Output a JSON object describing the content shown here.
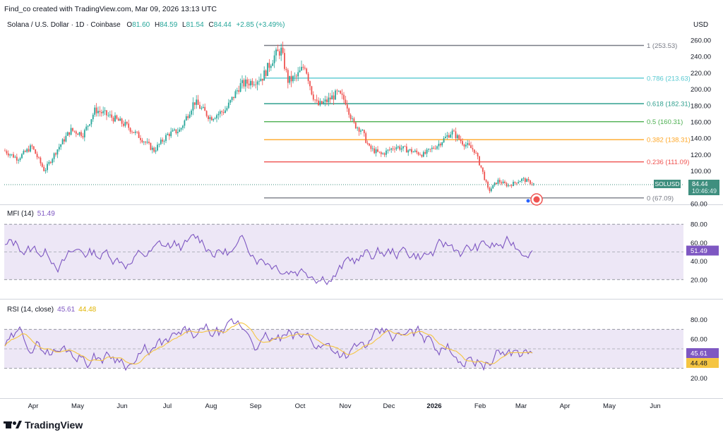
{
  "header": {
    "created_by": "Find_co created with TradingView.com, Mar 09, 2026 13:13 UTC",
    "symbol": "Solana / U.S. Dollar · 1D · Coinbase",
    "open_label": "O",
    "open": "81.60",
    "high_label": "H",
    "high": "84.59",
    "low_label": "L",
    "low": "81.54",
    "close_label": "C",
    "close": "84.44",
    "change": "+2.85 (+3.49%)"
  },
  "currency": "USD",
  "price_axis": [
    "260.00",
    "240.00",
    "220.00",
    "200.00",
    "180.00",
    "160.00",
    "140.00",
    "120.00",
    "100.00",
    "80.00",
    "60.00"
  ],
  "price_tag": {
    "symbol": "SOLUSD",
    "price": "84.44",
    "countdown": "10:46:49"
  },
  "fib_levels": [
    {
      "label": "1 (253.53)",
      "value": 253.53,
      "color": "#787b86"
    },
    {
      "label": "0.786 (213.63)",
      "value": 213.63,
      "color": "#56c8d0"
    },
    {
      "label": "0.618 (182.31)",
      "value": 182.31,
      "color": "#2f9f8e"
    },
    {
      "label": "0.5 (160.31)",
      "value": 160.31,
      "color": "#4caf50"
    },
    {
      "label": "0.382 (138.31)",
      "value": 138.31,
      "color": "#ffa726"
    },
    {
      "label": "0.236 (111.09)",
      "value": 111.09,
      "color": "#ef5350"
    },
    {
      "label": "0 (67.09)",
      "value": 67.09,
      "color": "#787b86"
    }
  ],
  "mfi": {
    "title": "MFI (14)",
    "value": "51.49",
    "axis": [
      "80.00",
      "60.00",
      "40.00",
      "20.00"
    ]
  },
  "rsi": {
    "title": "RSI (14, close)",
    "value": "45.61",
    "ma_value": "44.48",
    "axis": [
      "80.00",
      "60.00",
      "40.00",
      "20.00"
    ]
  },
  "time_axis": [
    "Apr",
    "May",
    "Jun",
    "Jul",
    "Aug",
    "Sep",
    "Oct",
    "Nov",
    "Dec",
    "2026",
    "Feb",
    "Mar",
    "Apr",
    "May",
    "Jun"
  ],
  "logo": "TradingView",
  "colors": {
    "up": "#26a69a",
    "down": "#ef5350",
    "indicator": "#7e57c2",
    "rsi_ma": "#f5c542",
    "band": "#ede7f6",
    "tag": "#3f8f7f"
  },
  "chart_data": {
    "type": "candlestick",
    "x": [
      "2025-04",
      "2025-05",
      "2025-06",
      "2025-07",
      "2025-08",
      "2025-09",
      "2025-10",
      "2025-11",
      "2025-12",
      "2026-01",
      "2026-02",
      "2026-03"
    ],
    "close": [
      125,
      160,
      150,
      160,
      185,
      210,
      190,
      160,
      128,
      140,
      85,
      84.44
    ],
    "y_range": [
      60,
      265
    ],
    "fib_retracement": {
      "high": 253.53,
      "low": 67.09
    },
    "mfi_14": {
      "last": 51.49,
      "range": [
        0,
        100
      ],
      "bands": [
        80,
        20
      ]
    },
    "rsi_14": {
      "last": 45.61,
      "ma_last": 44.48,
      "range": [
        0,
        100
      ],
      "bands": [
        70,
        30
      ]
    }
  }
}
